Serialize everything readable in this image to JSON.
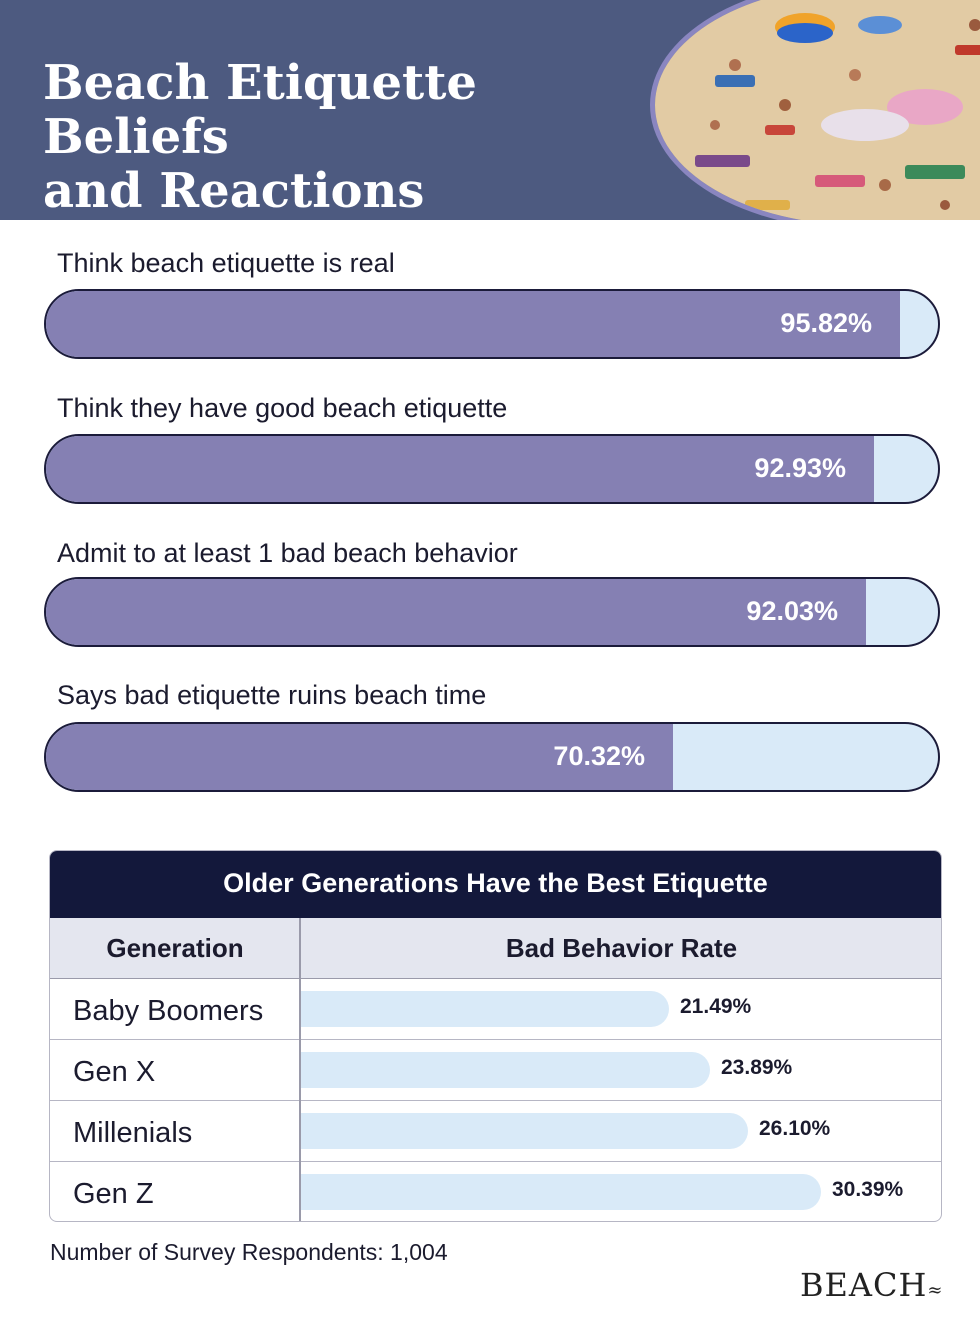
{
  "header": {
    "title_line1": "Beach Etiquette Beliefs",
    "title_line2": "and Reactions"
  },
  "chart_data": [
    {
      "type": "bar",
      "orientation": "horizontal",
      "categories": [
        "Think beach etiquette is real",
        "Think they have good beach etiquette",
        "Admit to at least 1 bad beach behavior",
        "Says bad etiquette ruins beach time"
      ],
      "values": [
        95.82,
        92.93,
        92.03,
        70.32
      ],
      "value_labels": [
        "95.82%",
        "92.93%",
        "92.03%",
        "70.32%"
      ],
      "unit": "%",
      "xlim": [
        0,
        100
      ],
      "colors": {
        "fill": "#8580b3",
        "track": "#d9eaf8",
        "outline": "#1b1b3a"
      }
    },
    {
      "type": "table",
      "title": "Older Generations Have the Best Etiquette",
      "columns": [
        "Generation",
        "Bad Behavior Rate"
      ],
      "rows": [
        {
          "generation": "Baby Boomers",
          "rate": 21.49,
          "rate_label": "21.49%"
        },
        {
          "generation": "Gen X",
          "rate": 23.89,
          "rate_label": "23.89%"
        },
        {
          "generation": "Millenials",
          "rate": 26.1,
          "rate_label": "26.10%"
        },
        {
          "generation": "Gen Z",
          "rate": 30.39,
          "rate_label": "30.39%"
        }
      ],
      "colors": {
        "title_bg": "#13183b",
        "header_bg": "#e4e6ef",
        "bar": "#d9eaf8"
      }
    }
  ],
  "footnote": "Number of Survey Respondents: 1,004",
  "logo": {
    "text": "BEACH",
    "mark": "≈"
  },
  "icons": {
    "photo": "crowded-beach-photo"
  }
}
